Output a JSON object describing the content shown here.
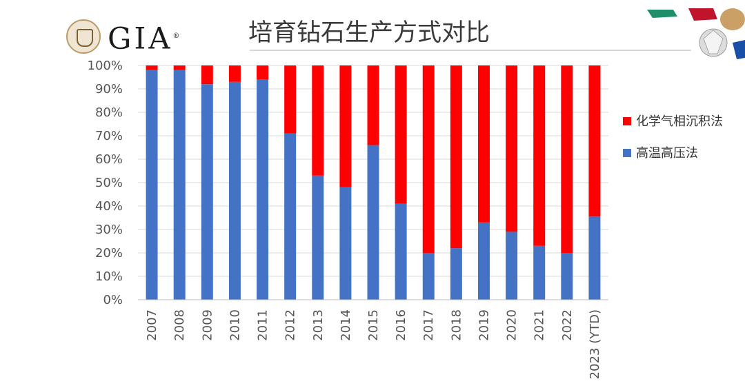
{
  "logo": {
    "wordmark": "GIA",
    "trademark": "®"
  },
  "title": "培育钻石生产方式对比",
  "icons": {
    "gems": "gemstones-decoration-icon",
    "seal": "gia-seal-icon"
  },
  "chart_data": {
    "type": "bar",
    "stacked": true,
    "percent": true,
    "title": "培育钻石生产方式对比",
    "xlabel": "",
    "ylabel": "",
    "ylim": [
      0,
      100
    ],
    "yticks": [
      "0%",
      "10%",
      "20%",
      "30%",
      "40%",
      "50%",
      "60%",
      "70%",
      "80%",
      "90%",
      "100%"
    ],
    "categories": [
      "2007",
      "2008",
      "2009",
      "2010",
      "2011",
      "2012",
      "2013",
      "2014",
      "2015",
      "2016",
      "2017",
      "2018",
      "2019",
      "2020",
      "2021",
      "2022",
      "2023 (YTD)"
    ],
    "series": [
      {
        "name": "高温高压法",
        "color": "#4472c4",
        "values": [
          98,
          98,
          92,
          93,
          94,
          71,
          53,
          48,
          66,
          41,
          20,
          22,
          33,
          29,
          23,
          20,
          35.5
        ]
      },
      {
        "name": "化学气相沉积法",
        "color": "#ff0000",
        "values": [
          2,
          2,
          8,
          7,
          6,
          29,
          47,
          52,
          34,
          59,
          80,
          78,
          67,
          71,
          77,
          80,
          64.5
        ]
      }
    ],
    "legend_order": [
      "化学气相沉积法",
      "高温高压法"
    ],
    "legend_position": "right",
    "grid": true
  }
}
